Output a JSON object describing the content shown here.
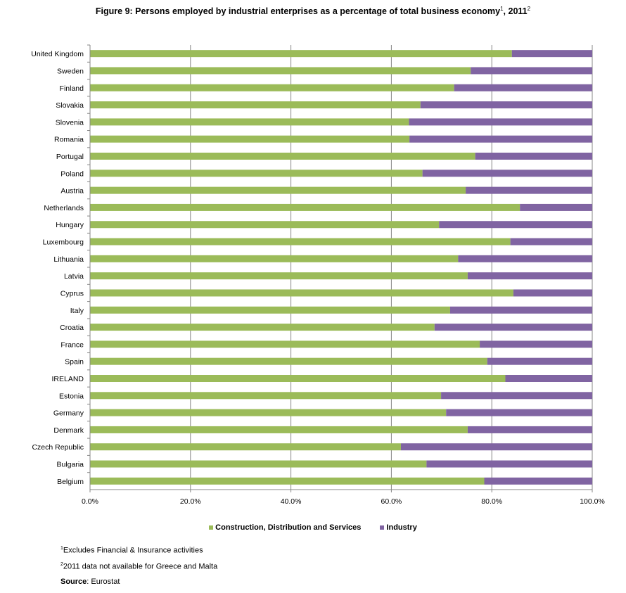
{
  "title": {
    "text": "Figure 9: Persons employed by industrial enterprises  as a percentage  of total business  economy",
    "sup1": "1",
    "year": ", 2011",
    "sup2": "2"
  },
  "colors": {
    "construction": "#9bbb59",
    "industry": "#8064a2",
    "grid": "#878787"
  },
  "chart_data": {
    "type": "bar",
    "orientation": "horizontal",
    "stacked": true,
    "percent_stacked": true,
    "categories": [
      "United Kingdom",
      "Sweden",
      "Finland",
      "Slovakia",
      "Slovenia",
      "Romania",
      "Portugal",
      "Poland",
      "Austria",
      "Netherlands",
      "Hungary",
      "Luxembourg",
      "Lithuania",
      "Latvia",
      "Cyprus",
      "Italy",
      "Croatia",
      "France",
      "Spain",
      "IRELAND",
      "Estonia",
      "Germany",
      "Denmark",
      "Czech Republic",
      "Bulgaria",
      "Belgium"
    ],
    "series": [
      {
        "name": "Construction, Distribution and Services",
        "values": [
          84.0,
          75.8,
          72.5,
          65.8,
          63.5,
          63.6,
          76.7,
          66.2,
          74.8,
          85.6,
          69.5,
          83.7,
          73.3,
          75.2,
          84.3,
          71.7,
          68.6,
          77.6,
          79.1,
          82.7,
          69.9,
          70.9,
          75.2,
          61.9,
          67.0,
          78.5
        ]
      },
      {
        "name": "Industry",
        "values": [
          16.0,
          24.2,
          27.5,
          34.2,
          36.5,
          36.4,
          23.3,
          33.8,
          25.2,
          14.4,
          30.5,
          16.3,
          26.7,
          24.8,
          15.7,
          28.3,
          31.4,
          22.4,
          20.9,
          17.3,
          30.1,
          29.1,
          24.8,
          38.1,
          33.0,
          21.5
        ]
      }
    ],
    "x_ticks": [
      "0.0%",
      "20.0%",
      "40.0%",
      "60.0%",
      "80.0%",
      "100.0%"
    ],
    "xlim": [
      0,
      100
    ],
    "grid": true,
    "legend_position": "bottom"
  },
  "legend": {
    "construction_label": "Construction, Distribution and Services",
    "industry_label": "Industry"
  },
  "notes": {
    "note1_sup": "1",
    "note1": "Excludes Financial & Insurance activities",
    "note2_sup": "2",
    "note2": "2011 data not available for Greece and Malta",
    "source_label": "Source",
    "source": ": Eurostat"
  }
}
